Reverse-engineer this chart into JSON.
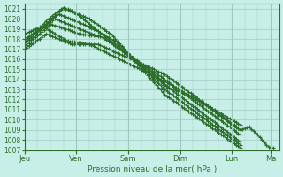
{
  "bg_color": "#c8eee8",
  "grid_color": "#a0c8c0",
  "line_color": "#2d6e2d",
  "ylim": [
    1007,
    1021.5
  ],
  "yticks": [
    1007,
    1008,
    1009,
    1010,
    1011,
    1012,
    1013,
    1014,
    1015,
    1016,
    1017,
    1018,
    1019,
    1020,
    1021
  ],
  "xlabel": "Pression niveau de la mer( hPa )",
  "xtick_labels": [
    "Jeu",
    "Ven",
    "Sam",
    "Dim",
    "Lun",
    "Ma"
  ],
  "xtick_positions": [
    0,
    24,
    48,
    72,
    96,
    114
  ],
  "xlim": [
    0,
    118
  ],
  "main_x_pts": [
    0,
    5,
    10,
    14,
    18,
    22,
    26,
    30,
    34,
    36,
    38,
    40,
    42,
    48,
    54,
    60,
    66,
    72,
    78,
    84,
    90,
    96,
    100,
    104,
    108,
    110,
    112,
    114
  ],
  "main_y_pts": [
    1017.5,
    1018.5,
    1019.8,
    1020.5,
    1021.1,
    1020.8,
    1020.2,
    1019.5,
    1018.8,
    1018.5,
    1018.2,
    1017.8,
    1017.5,
    1016.5,
    1015.5,
    1014.5,
    1013.2,
    1012.8,
    1012.2,
    1011.5,
    1010.5,
    1009.5,
    1009.0,
    1009.3,
    1008.5,
    1008.0,
    1007.5,
    1007.2
  ],
  "series_params": [
    [
      1017.5,
      18,
      1021.1,
      30,
      1020.0,
      40,
      1018.5,
      65,
      1012.5,
      100,
      1007.2
    ],
    [
      1018.0,
      14,
      1020.0,
      28,
      1018.8,
      38,
      1018.0,
      65,
      1013.5,
      100,
      1007.8
    ],
    [
      1017.8,
      16,
      1020.5,
      32,
      1019.0,
      42,
      1017.8,
      65,
      1013.0,
      100,
      1007.5
    ],
    [
      1017.2,
      12,
      1019.5,
      26,
      1018.5,
      36,
      1018.2,
      65,
      1014.0,
      100,
      1008.5
    ],
    [
      1017.0,
      10,
      1018.5,
      22,
      1017.5,
      34,
      1017.5,
      65,
      1014.5,
      100,
      1009.0
    ],
    [
      1018.5,
      8,
      1019.3,
      20,
      1017.8,
      30,
      1017.5,
      65,
      1013.8,
      100,
      1009.5
    ]
  ]
}
